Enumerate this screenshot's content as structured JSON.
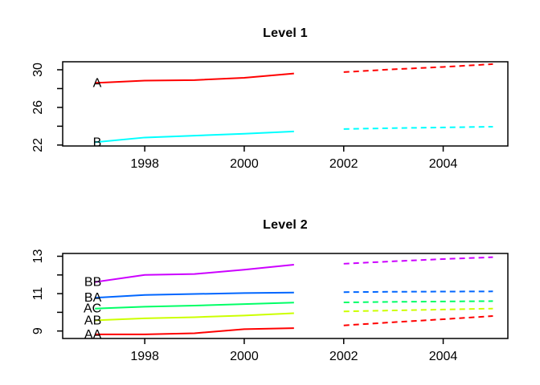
{
  "figure": {
    "background": "#FFFFFF",
    "text_color": "#000000"
  },
  "chart_data": [
    {
      "type": "line",
      "title": "Level 1",
      "xlabel": "",
      "ylabel": "",
      "xlim": [
        1996.35,
        2005.3
      ],
      "ylim": [
        21.9,
        30.85
      ],
      "xticks": [
        1998,
        2000,
        2002,
        2004
      ],
      "xtick_labels": [
        "1998",
        "2000",
        "2002",
        "2004"
      ],
      "yticks": [
        22,
        24,
        26,
        28,
        30
      ],
      "ytick_labels": [
        "22",
        "",
        "26",
        "",
        "30"
      ],
      "grid": false,
      "legend": "inline-series-labels",
      "x_solid": [
        1997,
        1998,
        1999,
        2000,
        2001
      ],
      "x_forecast": [
        2002,
        2003,
        2004,
        2005
      ],
      "forecast_style": "dashed",
      "series": [
        {
          "name": "A",
          "color": "#FF0000",
          "values": [
            28.6,
            28.85,
            28.9,
            29.15,
            29.6
          ],
          "forecast_values": [
            29.75,
            30.05,
            30.3,
            30.6
          ]
        },
        {
          "name": "B",
          "color": "#00FFFF",
          "values": [
            22.3,
            22.8,
            23.0,
            23.2,
            23.45
          ],
          "forecast_values": [
            23.7,
            23.8,
            23.87,
            23.95
          ]
        }
      ]
    },
    {
      "type": "line",
      "title": "Level 2",
      "xlabel": "",
      "ylabel": "",
      "xlim": [
        1996.35,
        2005.3
      ],
      "ylim": [
        8.6,
        13.15
      ],
      "xticks": [
        1998,
        2000,
        2002,
        2004
      ],
      "xtick_labels": [
        "1998",
        "2000",
        "2002",
        "2004"
      ],
      "yticks": [
        9,
        10,
        11,
        12,
        13
      ],
      "ytick_labels": [
        "9",
        "",
        "11",
        "",
        "13"
      ],
      "grid": false,
      "legend": "inline-series-labels",
      "x_solid": [
        1997,
        1998,
        1999,
        2000,
        2001
      ],
      "x_forecast": [
        2002,
        2003,
        2004,
        2005
      ],
      "forecast_style": "dashed",
      "series": [
        {
          "name": "BB",
          "color": "#CC00FF",
          "values": [
            11.62,
            12.0,
            12.05,
            12.28,
            12.55
          ],
          "forecast_values": [
            12.6,
            12.73,
            12.85,
            12.95
          ]
        },
        {
          "name": "BA",
          "color": "#0066FF",
          "values": [
            10.78,
            10.93,
            10.98,
            11.03,
            11.06
          ],
          "forecast_values": [
            11.08,
            11.1,
            11.11,
            11.12
          ]
        },
        {
          "name": "AC",
          "color": "#00FF66",
          "values": [
            10.2,
            10.3,
            10.36,
            10.44,
            10.52
          ],
          "forecast_values": [
            10.53,
            10.56,
            10.58,
            10.6
          ]
        },
        {
          "name": "AB",
          "color": "#CCFF00",
          "values": [
            9.57,
            9.68,
            9.74,
            9.83,
            9.95
          ],
          "forecast_values": [
            10.05,
            10.1,
            10.15,
            10.2
          ]
        },
        {
          "name": "AA",
          "color": "#FF0000",
          "values": [
            8.82,
            8.82,
            8.88,
            9.1,
            9.15
          ],
          "forecast_values": [
            9.3,
            9.47,
            9.63,
            9.8
          ]
        }
      ]
    }
  ]
}
